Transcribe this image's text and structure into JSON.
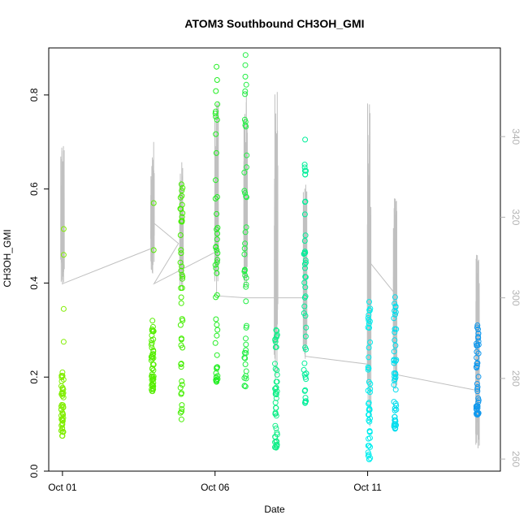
{
  "chart_data": {
    "type": "scatter",
    "title": "ATOM3 Southbound CH3OH_GMI",
    "xlabel": "Date",
    "ylabel": "CH3OH_GMI",
    "ylabel_right": "",
    "x_ticks": [
      "Oct 01",
      "Oct 06",
      "Oct 11"
    ],
    "x_tick_days": [
      1,
      6,
      11
    ],
    "xlim_days": [
      0.55,
      15.35
    ],
    "ylim": [
      0.0,
      0.9
    ],
    "y_ticks": [
      "0.0",
      "0.2",
      "0.4",
      "0.6",
      "0.8"
    ],
    "y_tick_values": [
      0.0,
      0.2,
      0.4,
      0.6,
      0.8
    ],
    "y2lim": [
      257,
      362
    ],
    "y2_ticks": [
      "260",
      "280",
      "300",
      "320",
      "340"
    ],
    "y2_tick_values": [
      260,
      280,
      300,
      320,
      340
    ],
    "series": [
      {
        "role": "CH3OH_GMI",
        "marker": "open-circle",
        "groups": [
          {
            "day": 1.0,
            "ymin": 0.075,
            "ymax": 0.21,
            "color": "#80ee00",
            "outliers": [
              0.275,
              0.345,
              0.46,
              0.515
            ]
          },
          {
            "day": 3.95,
            "ymin": 0.17,
            "ymax": 0.32,
            "color": "#55ee00",
            "outliers": [
              0.47,
              0.57
            ]
          },
          {
            "day": 4.9,
            "ymin": 0.11,
            "ymax": 0.61,
            "color": "#44ee00",
            "outliers": []
          },
          {
            "day": 6.05,
            "ymin": 0.19,
            "ymax": 0.86,
            "color": "#22ee22",
            "outliers": []
          },
          {
            "day": 7.0,
            "ymin": 0.18,
            "ymax": 0.885,
            "color": "#22ee44",
            "outliers": []
          },
          {
            "day": 8.0,
            "ymin": 0.05,
            "ymax": 0.3,
            "color": "#11ee88",
            "outliers": []
          },
          {
            "day": 8.95,
            "ymin": 0.145,
            "ymax": 0.705,
            "color": "#00ee99",
            "outliers": []
          },
          {
            "day": 11.05,
            "ymin": 0.025,
            "ymax": 0.36,
            "color": "#00eeee",
            "outliers": []
          },
          {
            "day": 11.9,
            "ymin": 0.09,
            "ymax": 0.37,
            "color": "#00ddee",
            "outliers": []
          },
          {
            "day": 14.6,
            "ymin": 0.12,
            "ymax": 0.31,
            "color": "#1199ee",
            "outliers": []
          }
        ]
      },
      {
        "role": "secondary-axis-trace",
        "color": "#c0c0c0",
        "line_points": [
          [
            1.0,
            303.5
          ],
          [
            4.0,
            312.5
          ],
          [
            4.0,
            318.5
          ],
          [
            4.8,
            313.5
          ],
          [
            4.0,
            303.5
          ],
          [
            6.05,
            311.5
          ],
          [
            6.05,
            300.5
          ],
          [
            7.0,
            300.0
          ],
          [
            8.0,
            300.0
          ],
          [
            8.95,
            300.0
          ],
          [
            8.95,
            285.5
          ],
          [
            11.05,
            283.5
          ],
          [
            11.05,
            309.0
          ],
          [
            11.9,
            301.0
          ],
          [
            11.9,
            281.0
          ],
          [
            14.6,
            277.0
          ]
        ],
        "spikes": [
          {
            "day": 1.0,
            "low": 302,
            "high": 341
          },
          {
            "day": 3.95,
            "low": 306,
            "high": 339
          },
          {
            "day": 4.9,
            "low": 302,
            "high": 338
          },
          {
            "day": 6.05,
            "low": 304,
            "high": 351
          },
          {
            "day": 7.0,
            "low": 301,
            "high": 352
          },
          {
            "day": 8.0,
            "low": 279,
            "high": 352
          },
          {
            "day": 8.95,
            "low": 284,
            "high": 329
          },
          {
            "day": 11.05,
            "low": 268,
            "high": 350
          },
          {
            "day": 11.9,
            "low": 277,
            "high": 326
          },
          {
            "day": 14.6,
            "low": 262,
            "high": 311
          }
        ]
      }
    ],
    "grid": false,
    "legend": "none"
  }
}
